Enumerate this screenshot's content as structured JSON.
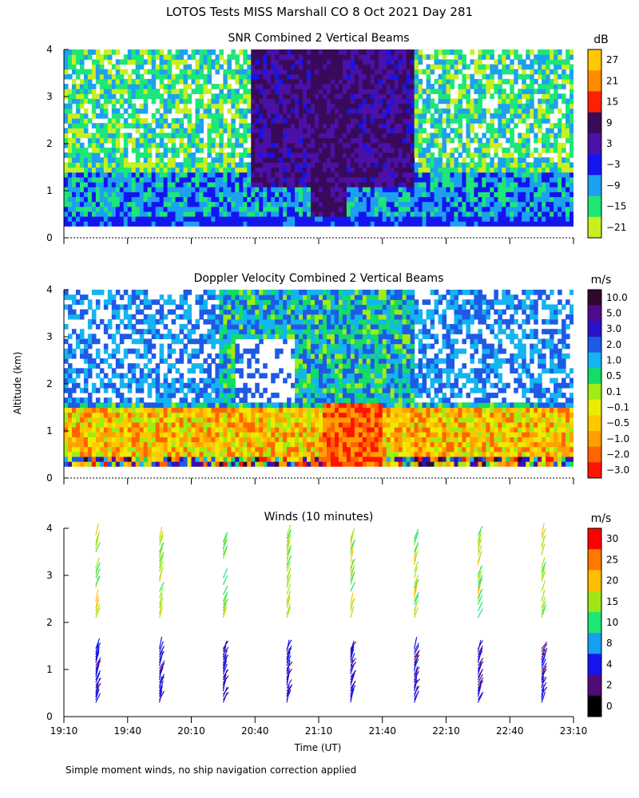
{
  "page_title": "LOTOS Tests MISS Marshall CO   8 Oct 2021 Day 281",
  "footnote": "Simple moment winds, no ship navigation correction applied",
  "shared": {
    "ylabel": "Altitude (km)",
    "xlabel": "Time (UT)",
    "ylim": [
      0,
      4
    ],
    "y_ticks": [
      "0",
      "1",
      "2",
      "3",
      "4"
    ],
    "x_ticks": [
      "19:10",
      "19:40",
      "20:10",
      "20:40",
      "21:10",
      "21:40",
      "22:10",
      "22:40",
      "23:10"
    ]
  },
  "chart_data": [
    {
      "id": "snr",
      "type": "heatmap",
      "title": "SNR Combined 2 Vertical Beams",
      "colorbar_unit": "dB",
      "colorbar_labels": [
        "27",
        "21",
        "15",
        "9",
        "3",
        "−3",
        "−9",
        "−15",
        "−21"
      ],
      "colors": [
        "#ffc800",
        "#ff8c00",
        "#ff2000",
        "#3a0a5a",
        "#4b10a8",
        "#1414f0",
        "#1ea0f0",
        "#1ee678",
        "#c8f01e"
      ],
      "xlim": [
        "19:10",
        "23:10"
      ],
      "ylim": [
        0,
        4
      ],
      "altitude_range_km": [
        0.25,
        4.0
      ]
    },
    {
      "id": "doppler",
      "type": "heatmap",
      "title": "Doppler Velocity Combined 2 Vertical Beams",
      "colorbar_unit": "m/s",
      "colorbar_labels": [
        "10.0",
        "5.0",
        "3.0",
        "2.0",
        "1.0",
        "0.5",
        "0.1",
        "−0.1",
        "−0.5",
        "−1.0",
        "−2.0",
        "−3.0"
      ],
      "colors": [
        "#300830",
        "#500a90",
        "#2814c8",
        "#1e5ae6",
        "#14b4f0",
        "#14dc64",
        "#a0ec14",
        "#ecec00",
        "#ffc800",
        "#ffa000",
        "#ff6400",
        "#ff1400"
      ],
      "xlim": [
        "19:10",
        "23:10"
      ],
      "ylim": [
        0,
        4
      ],
      "altitude_range_km": [
        0.25,
        4.0
      ]
    },
    {
      "id": "winds",
      "type": "scatter",
      "title": "Winds (10 minutes)",
      "colorbar_unit": "m/s",
      "colorbar_labels": [
        "30",
        "25",
        "20",
        "15",
        "10",
        "8",
        "4",
        "2",
        "0"
      ],
      "colors": [
        "#ff0000",
        "#ff7800",
        "#ffbe00",
        "#a0e614",
        "#1ee678",
        "#14a0f0",
        "#1414f0",
        "#500a7a",
        "#000000"
      ],
      "xlim": [
        "19:10",
        "23:10"
      ],
      "ylim": [
        0,
        4
      ],
      "profile_times": [
        "19:25",
        "19:55",
        "20:25",
        "20:55",
        "21:25",
        "21:55",
        "22:25",
        "22:55"
      ]
    }
  ]
}
